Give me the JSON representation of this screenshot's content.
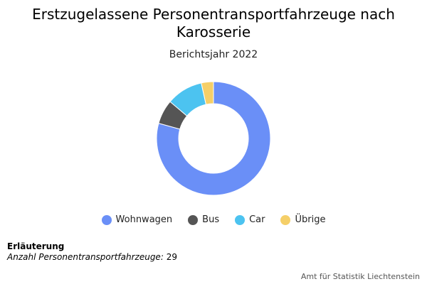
{
  "title": {
    "line1": "Erstzugelassene Personentransportfahrzeuge nach",
    "line2": "Karosserie"
  },
  "subtitle": "Berichtsjahr 2022",
  "chart_data": {
    "type": "pie",
    "style": "donut",
    "title": "Erstzugelassene Personentransportfahrzeuge nach Karosserie",
    "subtitle": "Berichtsjahr 2022",
    "categories": [
      "Wohnwagen",
      "Bus",
      "Car",
      "Übrige"
    ],
    "values": [
      23,
      2,
      3,
      1
    ],
    "total": 29,
    "colors": [
      "#6a8ff7",
      "#555555",
      "#4cc3f0",
      "#f5cf68"
    ],
    "legend_position": "bottom"
  },
  "note": {
    "heading": "Erläuterung",
    "label": "Anzahl Personentransportfahrzeuge:",
    "value": "29"
  },
  "credit": "Amt für Statistik Liechtenstein"
}
